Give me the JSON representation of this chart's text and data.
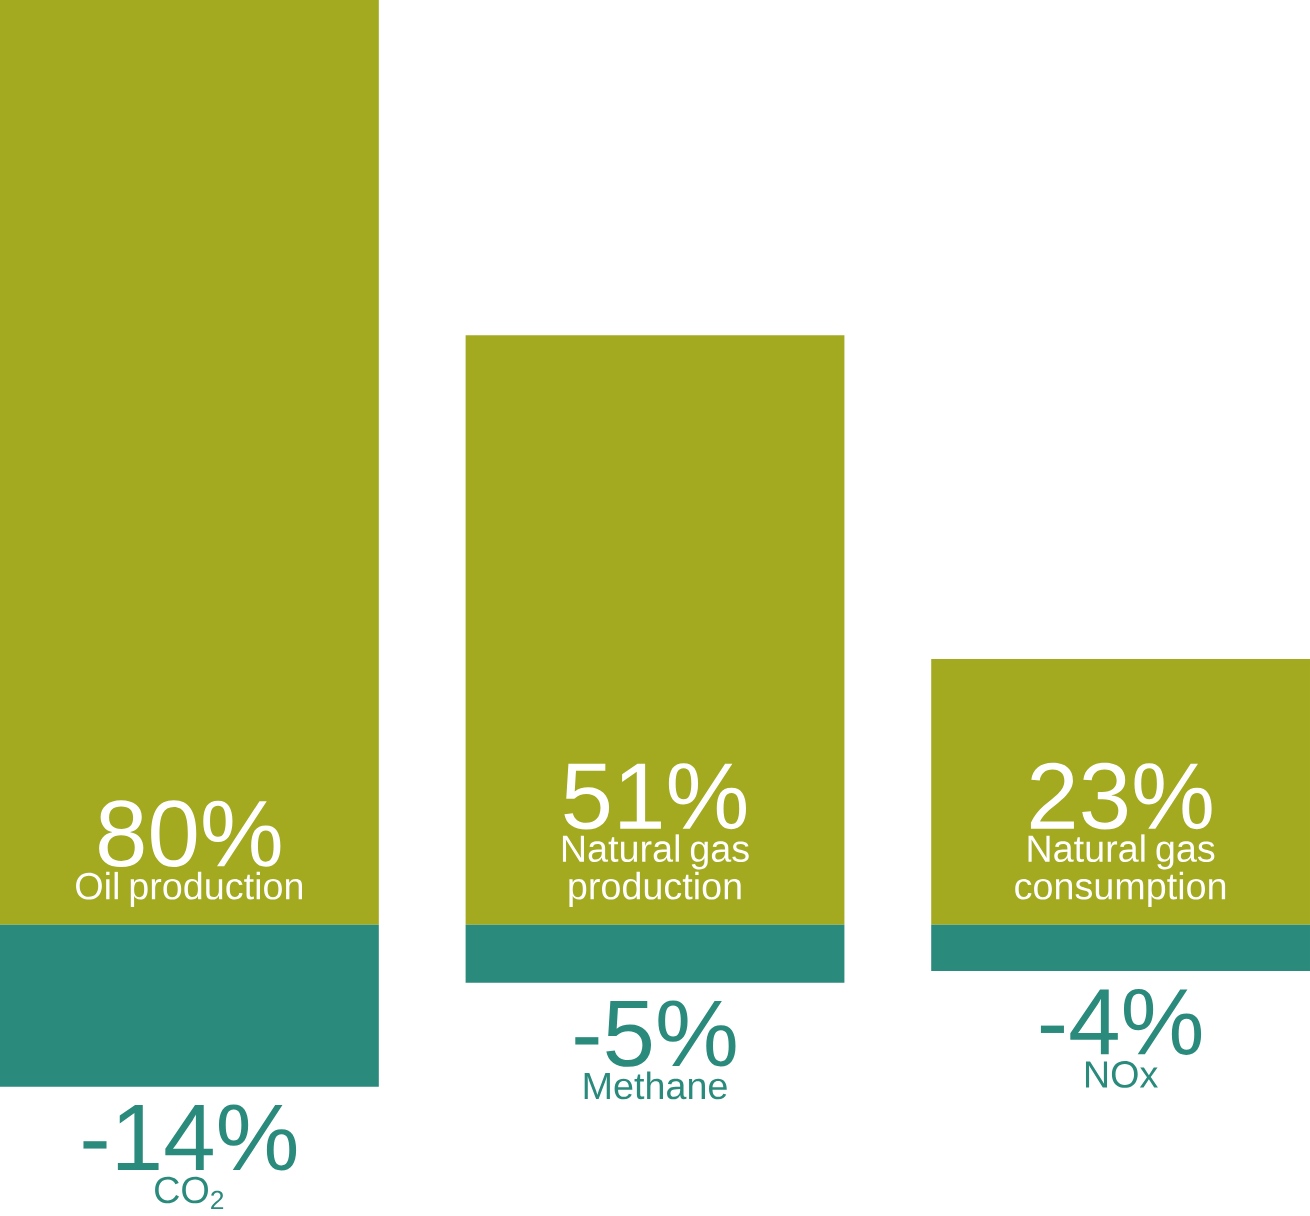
{
  "chart_data": {
    "type": "bar",
    "categories": [
      "Oil production",
      "Natural gas production",
      "Natural gas consumption"
    ],
    "series": [
      {
        "color": "#a3aa1f",
        "values": [
          80,
          51,
          23
        ],
        "value_labels": [
          "80%",
          "51%",
          "23%"
        ]
      },
      {
        "color": "#2a8a7c",
        "values": [
          -14,
          -5,
          -4
        ],
        "value_labels": [
          "-14%",
          "-5%",
          "-4%"
        ]
      }
    ],
    "annotations": [
      "CO$_{2}$",
      "Methane",
      "NOx"
    ],
    "stacked": true,
    "tick_labels": false
  }
}
